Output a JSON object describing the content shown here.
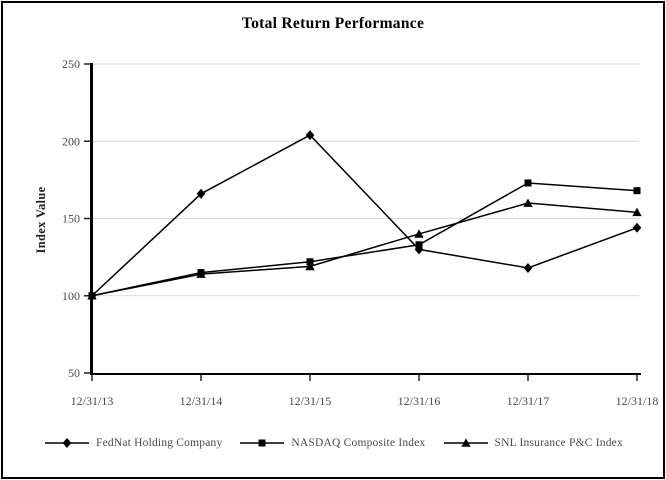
{
  "window": {
    "background": "#ffffff",
    "border_color": "#000000"
  },
  "chart_data": {
    "type": "line",
    "title": "Total Return Performance",
    "xlabel": "",
    "ylabel": "Index Value",
    "categories": [
      "12/31/13",
      "12/31/14",
      "12/31/15",
      "12/31/16",
      "12/31/17",
      "12/31/18"
    ],
    "ylim": [
      50,
      250
    ],
    "yticks": [
      50,
      100,
      150,
      200,
      250
    ],
    "grid": true,
    "legend_position": "bottom",
    "series": [
      {
        "name": "FedNat Holding Company",
        "marker": "diamond",
        "color": "#000000",
        "values": [
          100,
          166,
          204,
          130,
          118,
          144
        ]
      },
      {
        "name": "NASDAQ Composite Index",
        "marker": "square",
        "color": "#000000",
        "values": [
          100,
          115,
          122,
          133,
          173,
          168
        ]
      },
      {
        "name": "SNL Insurance P&C Index",
        "marker": "triangle",
        "color": "#000000",
        "values": [
          100,
          114,
          119,
          140,
          160,
          154
        ]
      }
    ],
    "colors": {
      "gridline": "#d9d9d9",
      "axis": "#000000",
      "tick_text": "#4a4a4a",
      "title_text": "#000000"
    }
  }
}
